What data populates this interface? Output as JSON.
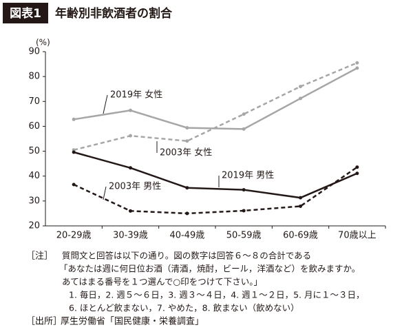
{
  "chart_data": {
    "type": "line",
    "title_tag": "図表1",
    "title": "年齢別非飲酒者の割合",
    "y_unit": "(%)",
    "categories": [
      "20-29歳",
      "30-39歳",
      "40-49歳",
      "50-59歳",
      "60-69歳",
      "70歳以上"
    ],
    "ylim": [
      20,
      90
    ],
    "yticks": [
      20,
      30,
      40,
      50,
      60,
      70,
      80,
      90
    ],
    "series": [
      {
        "name": "2019年 女性",
        "color": "#a6a6a6",
        "dashed": false,
        "values": [
          62.8,
          66.4,
          59.4,
          58.9,
          71.2,
          83.4
        ]
      },
      {
        "name": "2003年 女性",
        "color": "#a6a6a6",
        "dashed": true,
        "values": [
          50.5,
          56.2,
          54.1,
          64.9,
          76.0,
          85.5
        ]
      },
      {
        "name": "2019年 男性",
        "color": "#231815",
        "dashed": false,
        "values": [
          49.6,
          43.3,
          35.3,
          34.5,
          31.3,
          41.1
        ]
      },
      {
        "name": "2003年 男性",
        "color": "#231815",
        "dashed": true,
        "values": [
          36.6,
          26.0,
          25.0,
          26.1,
          27.9,
          43.6
        ]
      }
    ],
    "notes": {
      "label": "［注］",
      "lines": [
        "質問文と回答は以下の通り。図の数字は回答６～８の合計である",
        "「あなたは週に何日位お酒（清酒，焼酎，ビール，洋酒など）を飲みますか。",
        "あてはまる番号を１つ選んで○印をつけて下さい。」",
        "1. 毎日，2. 週５～６日，3. 週３～４日，4. 週１～２日，5. 月に１～３日，",
        "6. ほとんど飲まない，7. やめた，8. 飲まない（飲めない）"
      ]
    },
    "source": {
      "label": "［出所］",
      "text": "厚生労働省「国民健康・栄養調査」"
    }
  }
}
